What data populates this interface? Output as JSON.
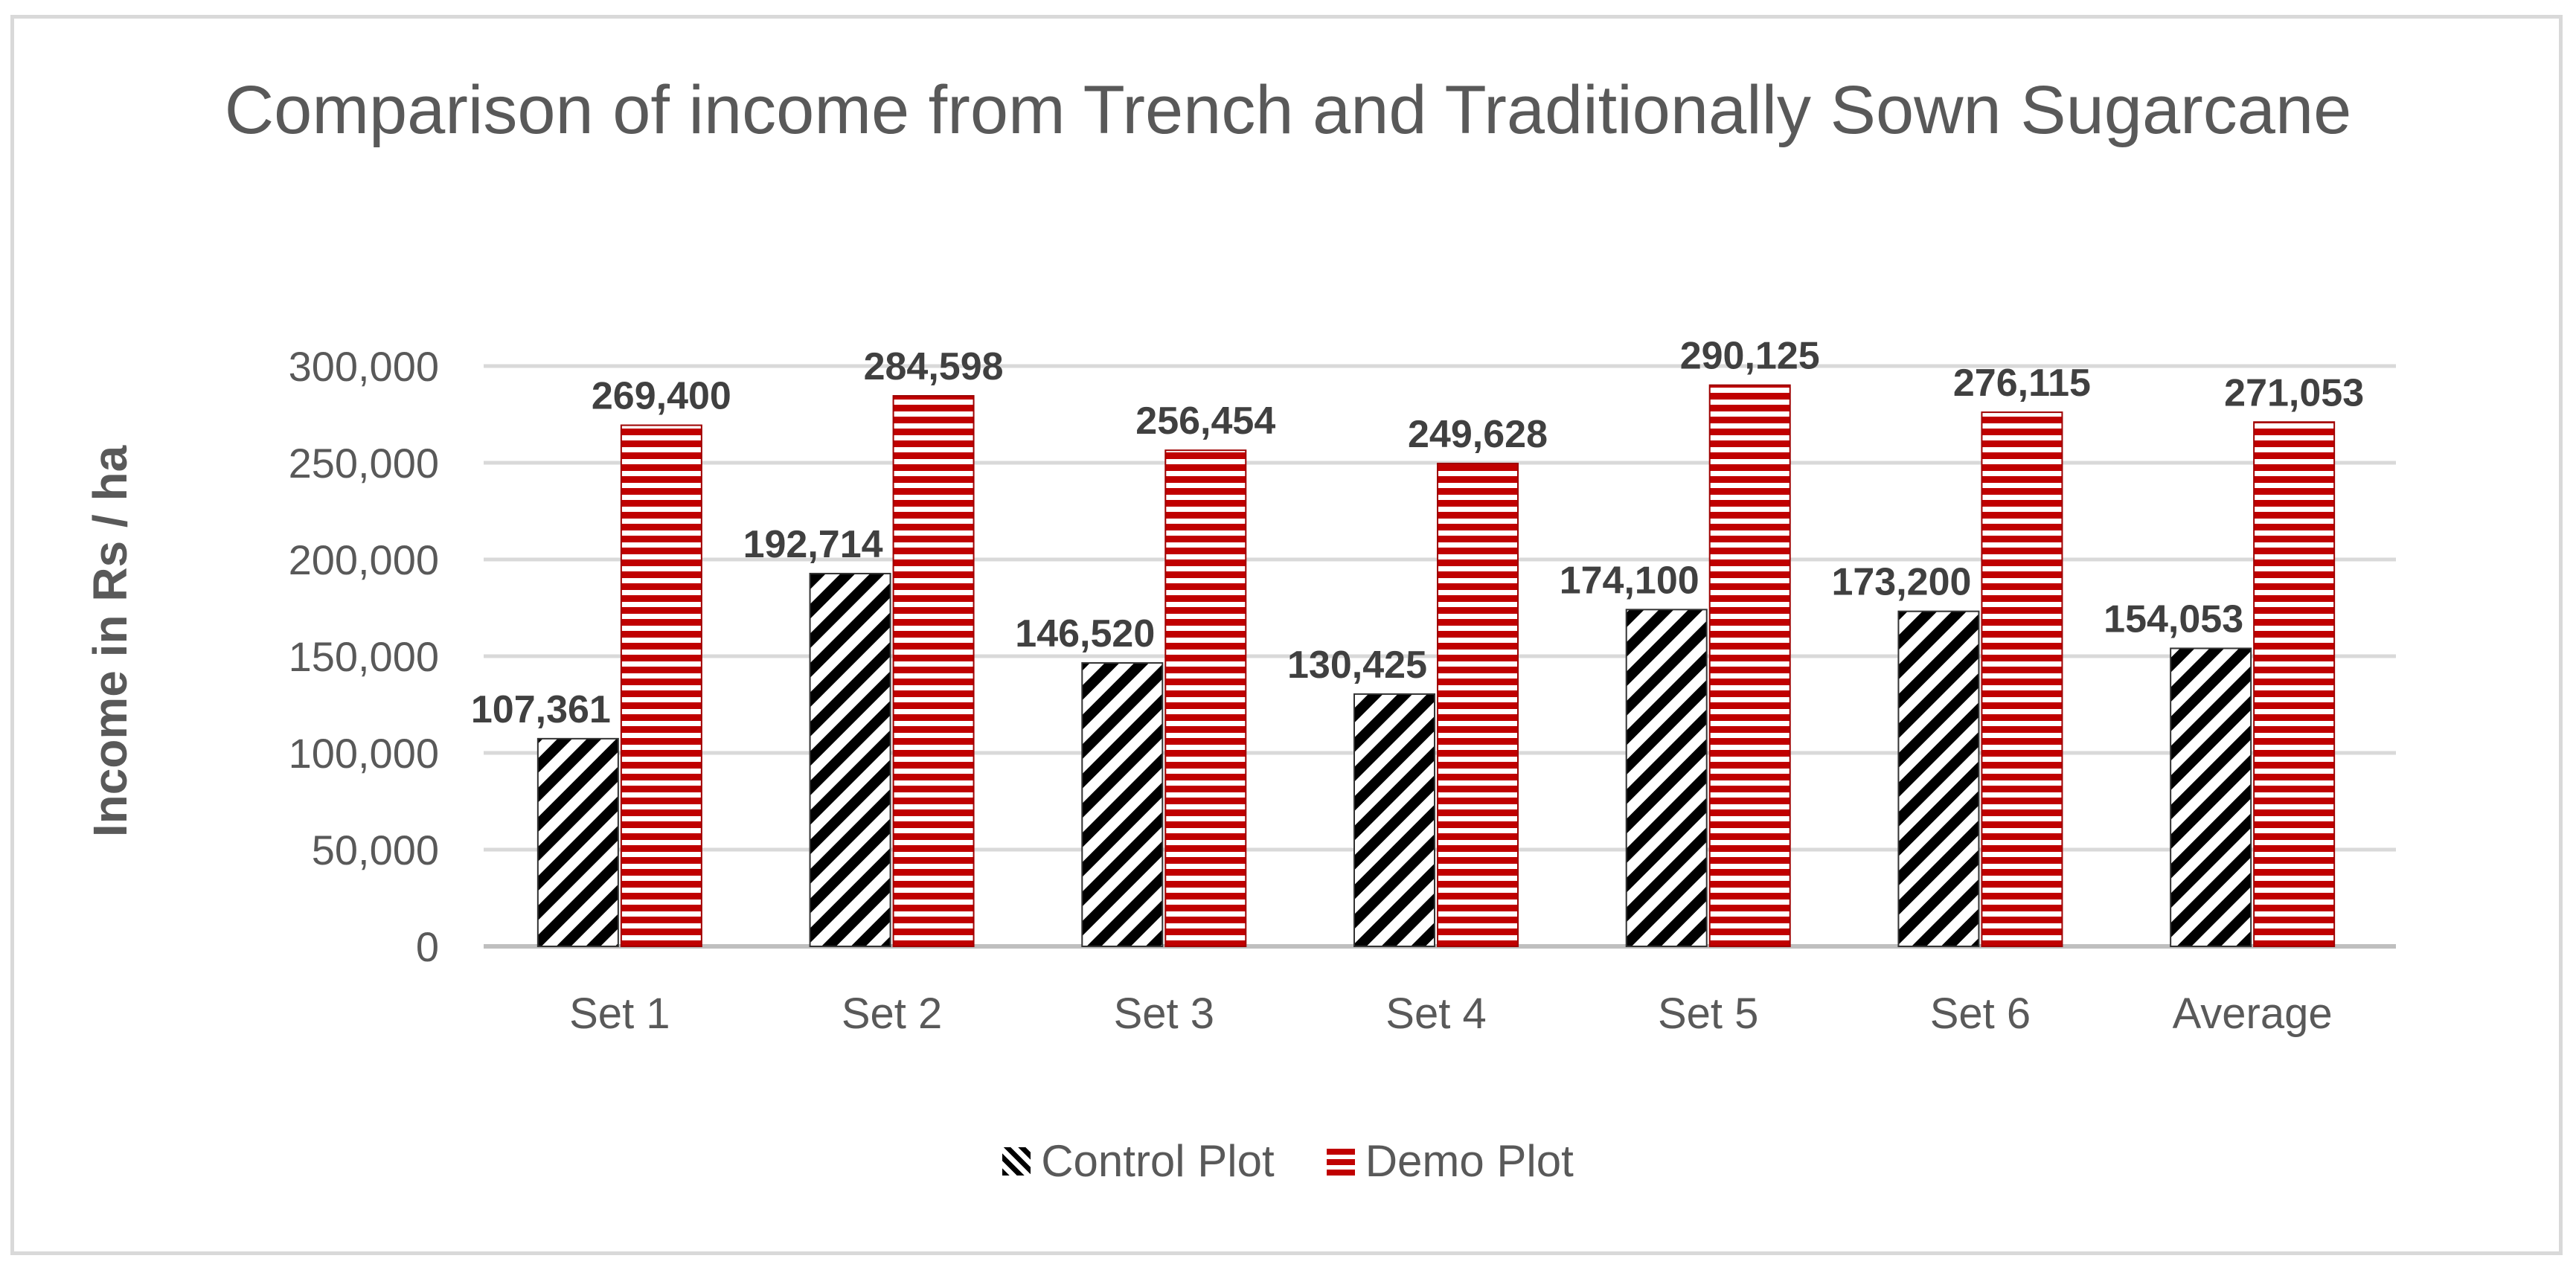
{
  "chart_data": {
    "type": "bar",
    "title": "Comparison of income from Trench and Traditionally Sown Sugarcane",
    "xlabel": "",
    "ylabel": "Income in Rs / ha",
    "categories": [
      "Set 1",
      "Set 2",
      "Set 3",
      "Set 4",
      "Set 5",
      "Set 6",
      "Average"
    ],
    "series": [
      {
        "name": "Control Plot",
        "values": [
          107361,
          192714,
          146520,
          130425,
          174100,
          173200,
          154053
        ],
        "labels": [
          "107,361",
          "192,714",
          "146,520",
          "130,425",
          "174,100",
          "173,200",
          "154,053"
        ],
        "color": "#000000",
        "pattern": "diagonal-stripes"
      },
      {
        "name": "Demo Plot",
        "values": [
          269400,
          284598,
          256454,
          249628,
          290125,
          276115,
          271053
        ],
        "labels": [
          "269,400",
          "284,598",
          "256,454",
          "249,628",
          "290,125",
          "276,115",
          "271,053"
        ],
        "color": "#c00000",
        "pattern": "horizontal-stripes"
      }
    ],
    "ylim": [
      0,
      300000
    ],
    "yticks": [
      0,
      50000,
      100000,
      150000,
      200000,
      250000,
      300000
    ],
    "ytick_labels": [
      "0",
      "50,000",
      "100,000",
      "150,000",
      "200,000",
      "250,000",
      "300,000"
    ],
    "grid": true,
    "legend_position": "bottom"
  }
}
